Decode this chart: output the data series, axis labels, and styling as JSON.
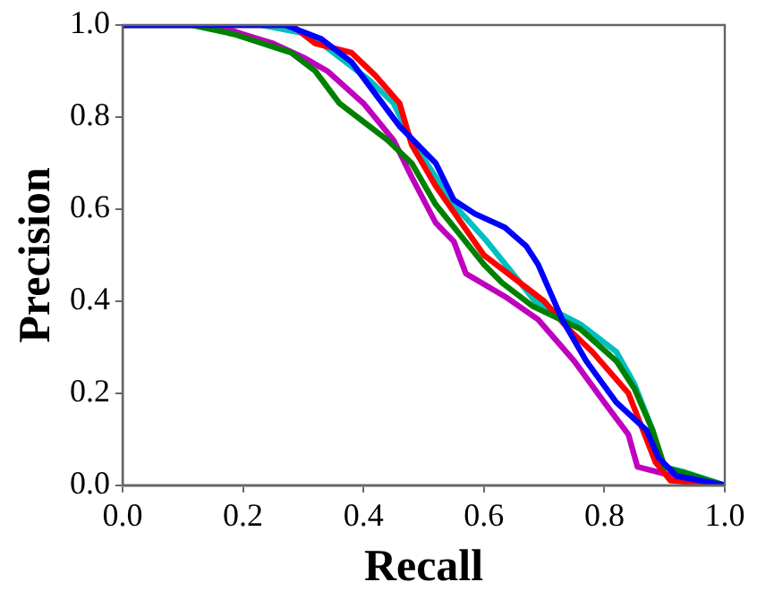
{
  "chart_data": {
    "type": "line",
    "xlabel": "Recall",
    "ylabel": "Precision",
    "xlim": [
      0,
      1
    ],
    "ylim": [
      0,
      1
    ],
    "xticks": [
      {
        "value": 0,
        "label": "0.0"
      },
      {
        "value": 0.2,
        "label": "0.2"
      },
      {
        "value": 0.4,
        "label": "0.4"
      },
      {
        "value": 0.6,
        "label": "0.6"
      },
      {
        "value": 0.8,
        "label": "0.8"
      },
      {
        "value": 1,
        "label": "1.0"
      }
    ],
    "yticks": [
      {
        "value": 0,
        "label": "0.0"
      },
      {
        "value": 0.2,
        "label": "0.2"
      },
      {
        "value": 0.4,
        "label": "0.4"
      },
      {
        "value": 0.6,
        "label": "0.6"
      },
      {
        "value": 0.8,
        "label": "0.8"
      },
      {
        "value": 1,
        "label": "1.0"
      }
    ],
    "grid": false,
    "legend": false,
    "marker": "none",
    "line_style": "solid",
    "series": [
      {
        "color": "#0000ff",
        "x": [
          0,
          0.27,
          0.33,
          0.38,
          0.42,
          0.46,
          0.52,
          0.55,
          0.585,
          0.635,
          0.67,
          0.69,
          0.73,
          0.77,
          0.82,
          0.87,
          0.89,
          0.92,
          1.0
        ],
        "values": [
          1,
          1,
          0.97,
          0.92,
          0.85,
          0.78,
          0.7,
          0.62,
          0.59,
          0.56,
          0.52,
          0.48,
          0.36,
          0.27,
          0.18,
          0.12,
          0.06,
          0.02,
          0
        ]
      },
      {
        "color": "#008000",
        "x": [
          0,
          0.115,
          0.185,
          0.28,
          0.32,
          0.36,
          0.4,
          0.44,
          0.48,
          0.52,
          0.6,
          0.63,
          0.68,
          0.76,
          0.82,
          0.85,
          0.88,
          0.9,
          1.0
        ],
        "values": [
          1,
          1,
          0.98,
          0.94,
          0.9,
          0.83,
          0.79,
          0.75,
          0.7,
          0.61,
          0.48,
          0.44,
          0.39,
          0.34,
          0.27,
          0.21,
          0.12,
          0.04,
          0
        ]
      },
      {
        "color": "#ff0000",
        "x": [
          0,
          0.28,
          0.32,
          0.38,
          0.42,
          0.46,
          0.48,
          0.52,
          0.6,
          0.7,
          0.74,
          0.78,
          0.84,
          0.87,
          0.885,
          0.91,
          1.0
        ],
        "values": [
          1,
          1,
          0.96,
          0.94,
          0.89,
          0.83,
          0.74,
          0.65,
          0.5,
          0.4,
          0.34,
          0.29,
          0.2,
          0.1,
          0.05,
          0.01,
          0
        ]
      },
      {
        "color": "#00bfbf",
        "x": [
          0,
          0.23,
          0.31,
          0.36,
          0.41,
          0.45,
          0.48,
          0.52,
          0.55,
          0.605,
          0.685,
          0.76,
          0.82,
          0.85,
          0.88,
          0.895,
          0.93,
          1.0
        ],
        "values": [
          1,
          1,
          0.98,
          0.93,
          0.88,
          0.83,
          0.75,
          0.67,
          0.61,
          0.53,
          0.4,
          0.35,
          0.29,
          0.22,
          0.12,
          0.04,
          0.03,
          0
        ]
      },
      {
        "color": "#bf00bf",
        "x": [
          0,
          0.155,
          0.2,
          0.25,
          0.3,
          0.34,
          0.4,
          0.45,
          0.48,
          0.52,
          0.55,
          0.57,
          0.635,
          0.69,
          0.75,
          0.8,
          0.84,
          0.855,
          0.9,
          1.0
        ],
        "values": [
          1,
          1,
          0.98,
          0.96,
          0.93,
          0.9,
          0.83,
          0.75,
          0.67,
          0.57,
          0.53,
          0.46,
          0.41,
          0.36,
          0.27,
          0.18,
          0.11,
          0.04,
          0.025,
          0
        ]
      }
    ]
  }
}
